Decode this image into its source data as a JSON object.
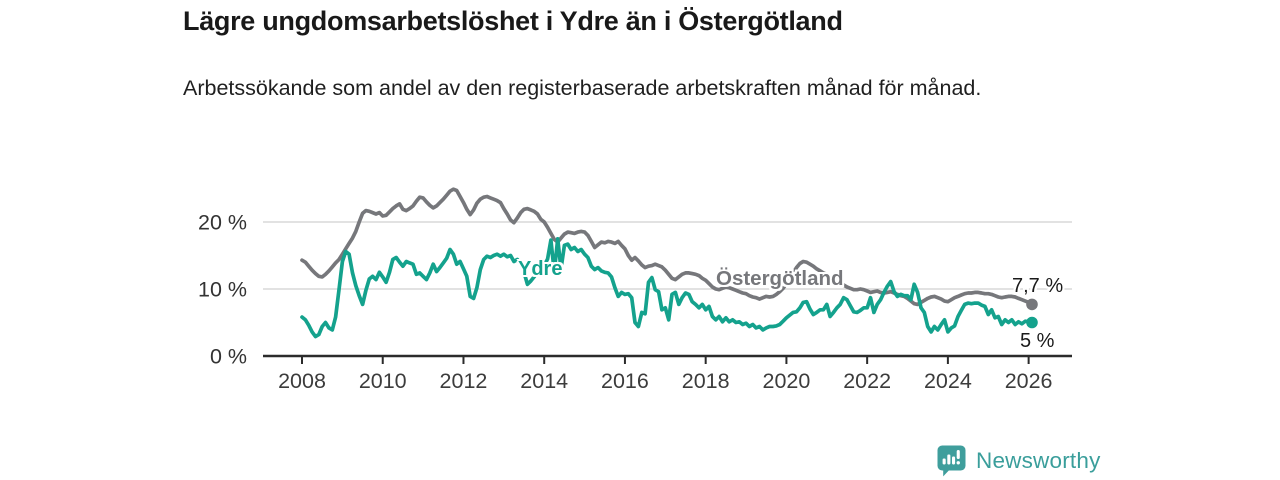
{
  "header": {
    "title": "Lägre ungdomsarbetslöshet i Ydre än i Östergötland",
    "subtitle": "Arbetssökande som andel av den registerbaserade arbetskraften månad för månad."
  },
  "footer": {
    "brand": "Newsworthy",
    "brand_color": "#3a9e9b"
  },
  "chart_data": {
    "type": "line",
    "unit": "%",
    "x_start": "2008-01",
    "x_end": "2026-02",
    "points_per_year": 12,
    "ylim": [
      0,
      27
    ],
    "grid": "horizontal-only",
    "y_axis": {
      "tick_values": [
        0,
        10,
        20
      ],
      "tick_labels": [
        "0 %",
        "10 %",
        "20 %"
      ]
    },
    "x_axis": {
      "tick_years": [
        2008,
        2010,
        2012,
        2014,
        2016,
        2018,
        2020,
        2022,
        2024,
        2026
      ]
    },
    "series": [
      {
        "name": "Ydre",
        "color": "#14a28d",
        "end_label": "5 %",
        "values": [
          5.8,
          5.4,
          4.6,
          3.6,
          2.9,
          3.2,
          4.4,
          5.0,
          4.2,
          3.9,
          5.8,
          9.9,
          14.1,
          15.6,
          15.2,
          12.4,
          10.5,
          9.0,
          7.7,
          9.8,
          11.5,
          11.9,
          11.4,
          12.5,
          11.8,
          11.0,
          12.5,
          14.4,
          14.7,
          14.0,
          13.4,
          14.1,
          13.9,
          13.7,
          12.2,
          12.4,
          11.9,
          11.4,
          12.4,
          13.7,
          12.6,
          13.2,
          13.9,
          14.6,
          15.9,
          15.2,
          13.7,
          14.1,
          13.0,
          11.9,
          8.9,
          8.6,
          10.2,
          12.9,
          14.4,
          14.9,
          14.7,
          15.0,
          15.2,
          14.9,
          15.2,
          14.8,
          15.0,
          14.1,
          14.4,
          13.8,
          12.5,
          10.7,
          11.2,
          11.8,
          12.5,
          13.5,
          13.5,
          14.5,
          17.3,
          12.5,
          17.5,
          13.0,
          16.5,
          16.7,
          15.9,
          16.2,
          15.6,
          15.9,
          15.2,
          14.7,
          13.4,
          12.9,
          13.2,
          12.7,
          12.5,
          12.4,
          11.8,
          10.2,
          8.9,
          9.5,
          9.2,
          9.3,
          8.7,
          5.0,
          4.4,
          6.5,
          6.3,
          11.0,
          11.7,
          9.9,
          9.6,
          6.9,
          7.2,
          5.4,
          9.2,
          9.5,
          7.7,
          8.7,
          9.4,
          9.2,
          8.1,
          7.7,
          7.2,
          7.7,
          6.9,
          7.4,
          5.9,
          5.4,
          5.9,
          5.1,
          5.7,
          5.1,
          5.4,
          5.0,
          5.1,
          4.7,
          4.9,
          4.4,
          4.7,
          4.2,
          4.4,
          3.9,
          4.2,
          4.4,
          4.4,
          4.5,
          4.7,
          5.2,
          5.7,
          6.1,
          6.5,
          6.6,
          7.2,
          8.0,
          8.1,
          7.0,
          6.2,
          6.5,
          6.9,
          6.9,
          7.7,
          5.9,
          6.5,
          7.2,
          7.7,
          8.7,
          8.4,
          7.5,
          6.6,
          6.5,
          6.8,
          7.2,
          7.2,
          8.7,
          6.5,
          7.7,
          8.4,
          9.5,
          10.4,
          11.1,
          9.6,
          8.9,
          9.2,
          9.0,
          9.0,
          8.4,
          10.7,
          9.5,
          7.2,
          6.5,
          4.4,
          3.6,
          4.4,
          3.9,
          4.7,
          5.4,
          3.6,
          4.2,
          4.5,
          5.9,
          6.8,
          7.7,
          7.9,
          7.8,
          7.9,
          7.9,
          7.6,
          7.4,
          6.2,
          6.9,
          5.7,
          5.9,
          4.7,
          5.4,
          5.0,
          5.4,
          4.7,
          5.1,
          4.8,
          5.2,
          5.1,
          5.0
        ]
      },
      {
        "name": "Östergötland",
        "color": "#76777b",
        "end_label": "7,7 %",
        "values": [
          14.3,
          14.0,
          13.4,
          12.8,
          12.3,
          11.9,
          11.8,
          12.2,
          12.7,
          13.3,
          13.9,
          14.4,
          15.2,
          16.0,
          16.8,
          17.6,
          18.6,
          20.0,
          21.3,
          21.7,
          21.6,
          21.4,
          21.2,
          21.4,
          20.9,
          21.0,
          21.5,
          22.0,
          22.4,
          22.7,
          21.9,
          21.7,
          22.0,
          22.4,
          23.1,
          23.7,
          23.6,
          23.0,
          22.5,
          22.1,
          22.4,
          22.9,
          23.4,
          24.0,
          24.6,
          24.9,
          24.7,
          23.8,
          22.9,
          21.9,
          21.1,
          21.8,
          22.8,
          23.4,
          23.7,
          23.8,
          23.6,
          23.4,
          23.2,
          22.9,
          22.0,
          21.2,
          20.3,
          19.9,
          20.6,
          21.4,
          21.9,
          22.0,
          21.8,
          21.6,
          21.2,
          20.4,
          20.0,
          19.2,
          18.3,
          17.4,
          17.0,
          17.6,
          18.2,
          18.5,
          18.4,
          18.3,
          18.5,
          18.6,
          18.5,
          18.0,
          17.1,
          16.2,
          16.6,
          17.0,
          16.9,
          17.1,
          17.0,
          16.8,
          17.1,
          16.5,
          16.0,
          15.0,
          14.3,
          14.7,
          14.2,
          13.6,
          13.2,
          13.4,
          13.5,
          13.7,
          13.5,
          13.3,
          12.8,
          12.2,
          11.6,
          11.4,
          11.8,
          12.2,
          12.4,
          12.4,
          12.3,
          12.2,
          12.0,
          11.6,
          11.3,
          10.8,
          10.3,
          10.0,
          9.9,
          10.1,
          10.3,
          10.2,
          10.0,
          9.8,
          9.6,
          9.4,
          9.3,
          9.0,
          8.8,
          8.7,
          8.5,
          8.7,
          8.9,
          8.8,
          8.9,
          9.2,
          9.6,
          10.1,
          10.8,
          11.5,
          12.4,
          13.2,
          13.8,
          14.1,
          14.0,
          13.7,
          13.4,
          13.0,
          12.7,
          12.4,
          12.2,
          11.9,
          11.5,
          11.2,
          10.9,
          10.6,
          10.3,
          10.1,
          9.9,
          9.9,
          10.0,
          9.9,
          9.7,
          9.5,
          9.6,
          9.7,
          9.5,
          9.4,
          9.5,
          9.6,
          9.4,
          9.2,
          9.0,
          8.9,
          8.6,
          8.2,
          7.8,
          7.7,
          8.0,
          8.3,
          8.6,
          8.8,
          8.9,
          8.7,
          8.5,
          8.2,
          8.1,
          8.4,
          8.7,
          8.9,
          9.1,
          9.3,
          9.4,
          9.4,
          9.5,
          9.5,
          9.4,
          9.3,
          9.3,
          9.2,
          9.0,
          8.8,
          8.7,
          8.8,
          8.9,
          8.9,
          8.8,
          8.6,
          8.4,
          8.2,
          8.0,
          7.7
        ]
      }
    ]
  }
}
